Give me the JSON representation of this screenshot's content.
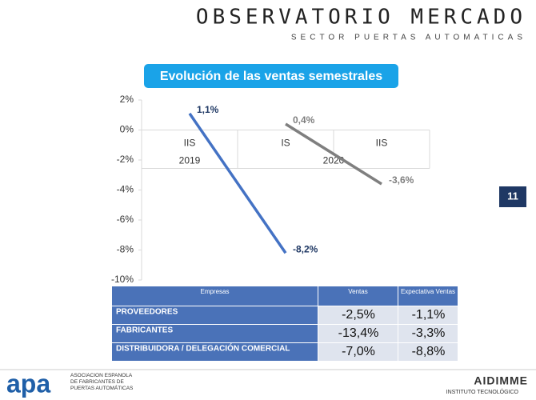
{
  "header": {
    "title": "OBSERVATORIO MERCADO",
    "subtitle": "SECTOR PUERTAS AUTOMATICAS"
  },
  "page_number": "11",
  "chart_data": {
    "type": "line",
    "title": "Evolución de las ventas semestrales",
    "categories": [
      "IIS",
      "IS",
      "IIS"
    ],
    "category_groups": [
      {
        "label": "2019",
        "count": 1
      },
      {
        "label": "2020",
        "count": 2
      }
    ],
    "series": [
      {
        "color": "#4472c4",
        "label_color": "#1f3864",
        "values": [
          1.1,
          -8.2,
          null
        ],
        "value_labels": [
          "1,1%",
          "-8,2%",
          null
        ]
      },
      {
        "color": "#7f7f7f",
        "label_color": "#7f7f7f",
        "values": [
          null,
          0.4,
          -3.6
        ],
        "value_labels": [
          null,
          "0,4%",
          "-3,6%"
        ]
      }
    ],
    "ylim": [
      -10,
      2
    ],
    "yticks": [
      {
        "value": 2,
        "label": "2%"
      },
      {
        "value": 0,
        "label": "0%"
      },
      {
        "value": -2,
        "label": "-2%"
      },
      {
        "value": -4,
        "label": "-4%"
      },
      {
        "value": -6,
        "label": "-6%"
      },
      {
        "value": -8,
        "label": "-8%"
      },
      {
        "value": -10,
        "label": "-10%"
      }
    ]
  },
  "table": {
    "header": [
      "Empresas",
      "Ventas",
      "Expectativa Ventas"
    ],
    "rows": [
      [
        "PROVEEDORES",
        "-2,5%",
        "-1,1%"
      ],
      [
        "FABRICANTES",
        "-13,4%",
        "-3,3%"
      ],
      [
        "DISTRIBUIDORA / DELEGACIÓN COMERCIAL",
        "-7,0%",
        "-8,8%"
      ]
    ]
  },
  "footer": {
    "left_logo": "apa",
    "left_text": "ASOCIACIÓN ESPAÑOLA DE FABRICANTES DE PUERTAS AUTOMÁTICAS",
    "right_logo": "AIDIMME",
    "right_text": "INSTITUTO TECNOLÓGICO"
  }
}
